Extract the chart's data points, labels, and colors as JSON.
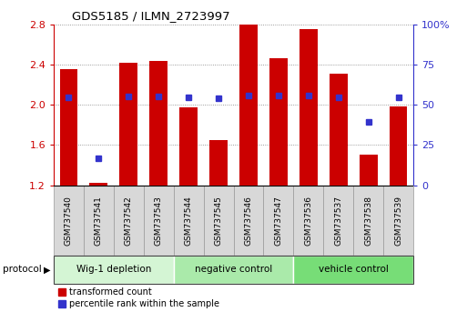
{
  "title": "GDS5185 / ILMN_2723997",
  "samples": [
    "GSM737540",
    "GSM737541",
    "GSM737542",
    "GSM737543",
    "GSM737544",
    "GSM737545",
    "GSM737546",
    "GSM737547",
    "GSM737536",
    "GSM737537",
    "GSM737538",
    "GSM737539"
  ],
  "red_values": [
    2.35,
    1.22,
    2.42,
    2.43,
    1.97,
    1.65,
    2.8,
    2.46,
    2.75,
    2.31,
    1.5,
    1.98
  ],
  "blue_values_raw": [
    2.07,
    1.47,
    2.08,
    2.08,
    2.07,
    2.06,
    2.09,
    2.09,
    2.09,
    2.07,
    1.83,
    2.07
  ],
  "ylim": [
    1.2,
    2.8
  ],
  "yticks_left": [
    1.2,
    1.6,
    2.0,
    2.4,
    2.8
  ],
  "yticks_right": [
    0,
    25,
    50,
    75,
    100
  ],
  "bar_color": "#cc0000",
  "dot_color": "#3333cc",
  "bar_width": 0.6,
  "groups": [
    {
      "label": "Wig-1 depletion",
      "start": 0,
      "end": 3,
      "color": "#d4f5d4"
    },
    {
      "label": "negative control",
      "start": 4,
      "end": 7,
      "color": "#aaeaaa"
    },
    {
      "label": "vehicle control",
      "start": 8,
      "end": 11,
      "color": "#77dd77"
    }
  ],
  "legend_red_label": "transformed count",
  "legend_blue_label": "percentile rank within the sample",
  "ylabel_left_color": "#cc0000",
  "ylabel_right_color": "#3333cc",
  "protocol_label": "protocol",
  "background_color": "#ffffff",
  "sample_box_color": "#d8d8d8",
  "sample_box_edge": "#999999"
}
